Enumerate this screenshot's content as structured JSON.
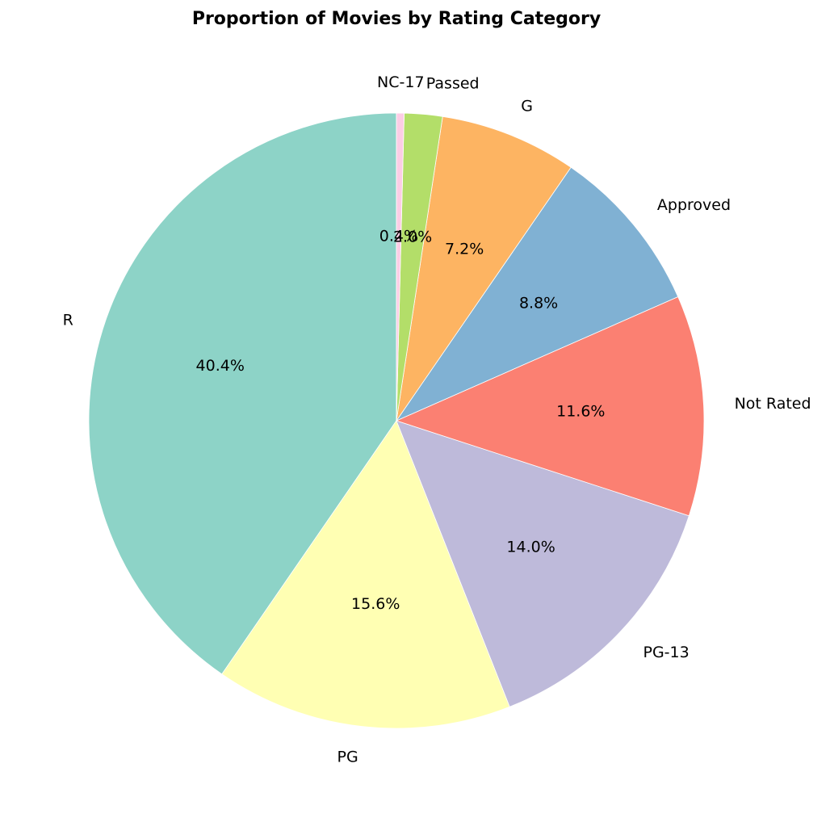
{
  "chart_data": {
    "type": "pie",
    "title": "Proportion of Movies by Rating Category",
    "start_angle_deg": 90,
    "direction": "counterclockwise",
    "slices": [
      {
        "label": "R",
        "value": 40.4,
        "pct_label": "40.4%",
        "color": "#8dd3c7"
      },
      {
        "label": "PG",
        "value": 15.6,
        "pct_label": "15.6%",
        "color": "#ffffb3"
      },
      {
        "label": "PG-13",
        "value": 14.0,
        "pct_label": "14.0%",
        "color": "#bebada"
      },
      {
        "label": "Not Rated",
        "value": 11.6,
        "pct_label": "11.6%",
        "color": "#fb8072"
      },
      {
        "label": "Approved",
        "value": 8.8,
        "pct_label": "8.8%",
        "color": "#80b1d3"
      },
      {
        "label": "G",
        "value": 7.2,
        "pct_label": "7.2%",
        "color": "#fdb462"
      },
      {
        "label": "Passed",
        "value": 2.0,
        "pct_label": "2.0%",
        "color": "#b3de69"
      },
      {
        "label": "NC-17",
        "value": 0.4,
        "pct_label": "0.4%",
        "color": "#fccde5"
      }
    ]
  }
}
